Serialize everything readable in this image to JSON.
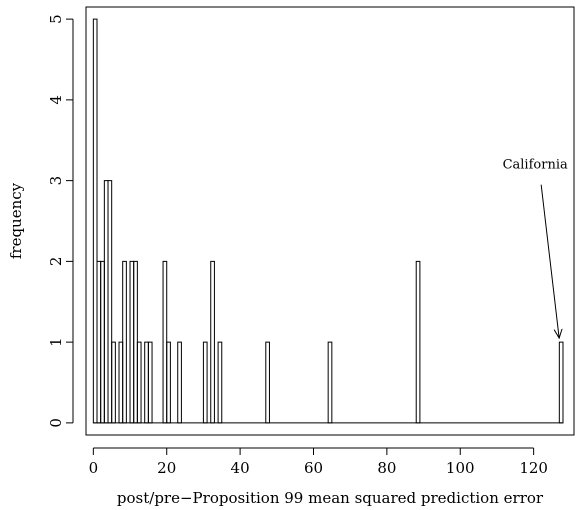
{
  "chart_data": {
    "type": "bar",
    "title": "",
    "xlabel": "post/pre−Proposition 99 mean squared prediction error",
    "ylabel": "frequency",
    "xlim": [
      -2,
      131
    ],
    "ylim": [
      -0.15,
      5.15
    ],
    "x_ticks": [
      "0",
      "20",
      "40",
      "60",
      "80",
      "100",
      "120"
    ],
    "y_ticks": [
      "0",
      "1",
      "2",
      "3",
      "4",
      "5"
    ],
    "bin_width": 1,
    "bins": [
      {
        "x": 0,
        "count": 5
      },
      {
        "x": 1,
        "count": 2
      },
      {
        "x": 2,
        "count": 2
      },
      {
        "x": 3,
        "count": 3
      },
      {
        "x": 4,
        "count": 3
      },
      {
        "x": 5,
        "count": 1
      },
      {
        "x": 7,
        "count": 1
      },
      {
        "x": 8,
        "count": 2
      },
      {
        "x": 10,
        "count": 2
      },
      {
        "x": 11,
        "count": 2
      },
      {
        "x": 12,
        "count": 1
      },
      {
        "x": 14,
        "count": 1
      },
      {
        "x": 15,
        "count": 1
      },
      {
        "x": 19,
        "count": 2
      },
      {
        "x": 20,
        "count": 1
      },
      {
        "x": 23,
        "count": 1
      },
      {
        "x": 30,
        "count": 1
      },
      {
        "x": 32,
        "count": 2
      },
      {
        "x": 34,
        "count": 1
      },
      {
        "x": 47,
        "count": 1
      },
      {
        "x": 64,
        "count": 1
      },
      {
        "x": 88,
        "count": 2
      },
      {
        "x": 127,
        "count": 1
      }
    ],
    "annotations": [
      {
        "text": "California",
        "x": 127,
        "y": 1
      }
    ],
    "grid": false,
    "legend": "none"
  }
}
